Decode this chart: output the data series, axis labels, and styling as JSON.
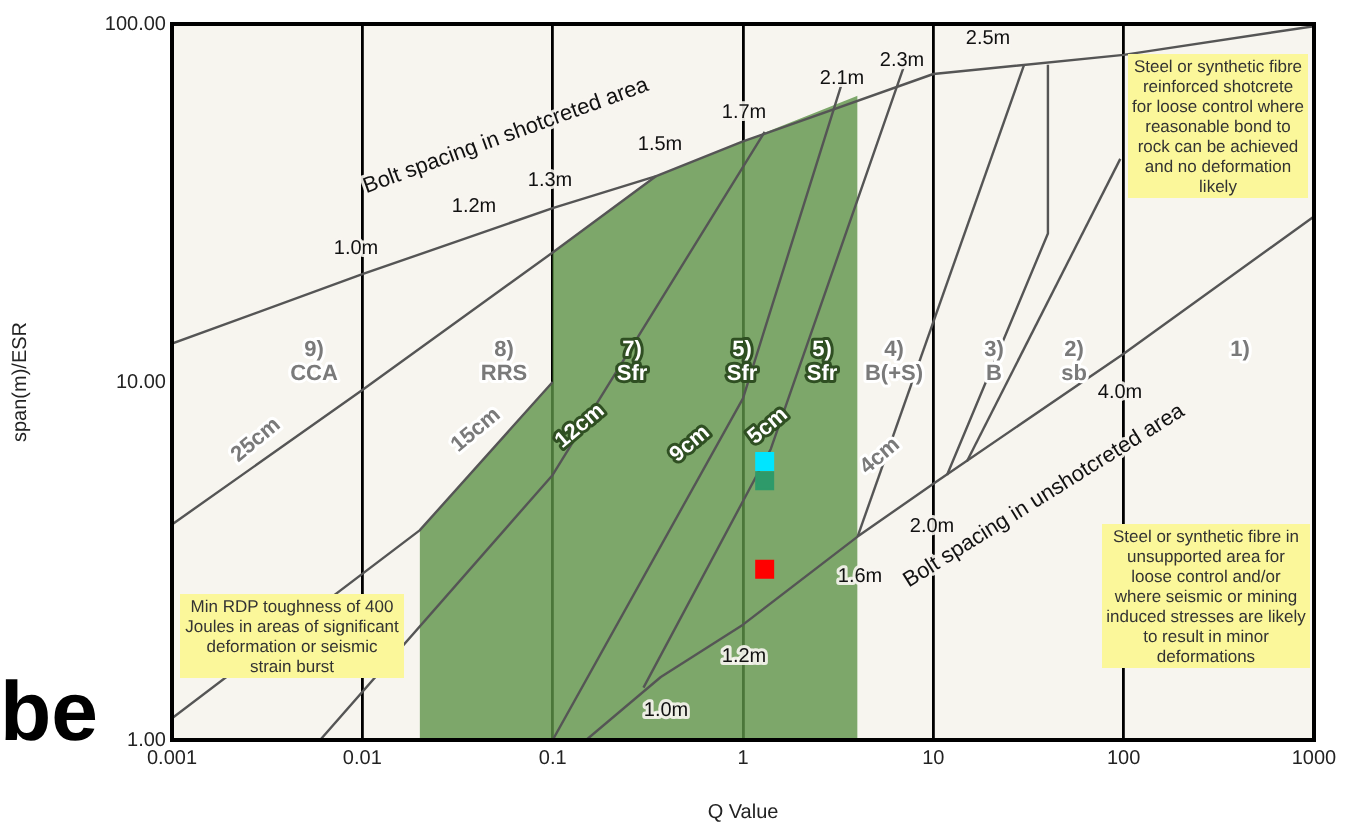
{
  "chart_data": {
    "type": "line",
    "xlabel": "Q Value",
    "ylabel": "span(m)/ESR",
    "log": "xy",
    "grid": "x",
    "legend": false,
    "marker": "none",
    "xlim": [
      0.001,
      1000
    ],
    "xticks": [
      0.001,
      0.01,
      0.1,
      1,
      10,
      100,
      1000
    ],
    "ylim": [
      1,
      100
    ],
    "yticks": [
      {
        "value": 1,
        "label": "1.00"
      },
      {
        "value": 10,
        "label": "10.00"
      },
      {
        "value": 100,
        "label": "100.00"
      }
    ],
    "series": [
      {
        "type": "area",
        "color": "#5e9448",
        "x": [
          0.02,
          0.02,
          0.1,
          0.1,
          0.35,
          1,
          4,
          4
        ],
        "values": [
          1,
          3.85,
          10,
          23,
          37.6,
          47,
          63,
          1
        ]
      },
      {
        "color": "#555555",
        "x": [
          0.001,
          0.01,
          0.1,
          0.35,
          1,
          10,
          100,
          1000
        ],
        "values": [
          12.8,
          20,
          30.6,
          37.6,
          47,
          72.5,
          82,
          98.6
        ]
      },
      {
        "color": "#555555",
        "x": [
          0.15,
          0.37,
          1,
          4,
          10,
          100,
          1000
        ],
        "values": [
          1,
          1.5,
          2.1,
          3.7,
          5.2,
          12,
          29
        ]
      },
      {
        "color": "#555555",
        "x": [
          0.001,
          0.01,
          0.1,
          0.35
        ],
        "values": [
          4,
          9.5,
          23,
          37.6
        ]
      },
      {
        "color": "#555555",
        "x": [
          0.001,
          0.02,
          0.1
        ],
        "values": [
          1.15,
          3.85,
          10
        ]
      },
      {
        "color": "#555555",
        "x": [
          0.006,
          0.1,
          1.3
        ],
        "values": [
          1,
          5.5,
          50
        ]
      },
      {
        "color": "#555555",
        "x": [
          0.1,
          1,
          3.3
        ],
        "values": [
          1,
          9,
          68
        ]
      },
      {
        "color": "#555555",
        "x": [
          0.3,
          1.4,
          7
        ],
        "values": [
          1.4,
          6.5,
          76
        ]
      },
      {
        "color": "#555555",
        "x": [
          4,
          30
        ],
        "values": [
          3.7,
          77
        ]
      },
      {
        "color": "#555555",
        "x": [
          11.8,
          40,
          40
        ],
        "values": [
          5.5,
          26,
          77
        ]
      },
      {
        "color": "#555555",
        "x": [
          15,
          96
        ],
        "values": [
          6,
          42
        ]
      },
      {
        "type": "scatter",
        "marker": "square",
        "color": "#00e5ff",
        "x": [
          1.3
        ],
        "values": [
          6
        ]
      },
      {
        "type": "scatter",
        "marker": "square",
        "color": "#2e9a6a",
        "x": [
          1.3
        ],
        "values": [
          5.3
        ]
      },
      {
        "type": "scatter",
        "marker": "square",
        "color": "#ff0000",
        "x": [
          1.3
        ],
        "values": [
          3
        ]
      }
    ],
    "annotations": [
      "1.0m",
      "1.2m",
      "1.3m",
      "1.5m",
      "1.7m",
      "2.1m",
      "2.3m",
      "2.5m",
      "Bolt spacing in shotcreted area",
      "1.0m",
      "1.2m",
      "1.6m",
      "2.0m",
      "4.0m",
      "Bolt spacing in unshotcreted area",
      "9)\nCCA",
      "8)\nRRS",
      "7)\nSfr",
      "5)\nSfr",
      "5)\nSfr",
      "4)\nB(+S)",
      "3)\nB",
      "2)\nsb",
      "1)",
      "25cm",
      "15cm",
      "12cm",
      "9cm",
      "5cm",
      "4cm",
      "Steel or synthetic fibre reinforced shotcrete for loose control where reasonable bond to rock can be achieved and no deformation likely",
      "Steel or synthetic fibre in unsupported area for loose control and/or where seismic or mining induced stresses are likely to result in minor deformations",
      "Min RDP toughness of 400 Joules in areas of significant deformation or seismic strain burst",
      "be"
    ]
  }
}
